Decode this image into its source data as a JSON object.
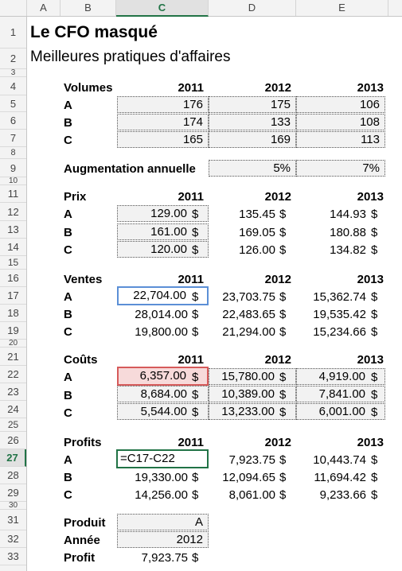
{
  "columns": [
    "A",
    "B",
    "C",
    "D",
    "E"
  ],
  "selected_column": "C",
  "rows": [
    "1",
    "2",
    "3",
    "4",
    "5",
    "6",
    "7",
    "8",
    "9",
    "10",
    "11",
    "12",
    "13",
    "14",
    "15",
    "16",
    "17",
    "18",
    "19",
    "20",
    "21",
    "22",
    "23",
    "24",
    "25",
    "26",
    "27",
    "28",
    "29",
    "30",
    "31",
    "32",
    "33"
  ],
  "selected_row": "27",
  "title": "Le CFO masqué",
  "subtitle": "Meilleures pratiques d'affaires",
  "years": [
    "2011",
    "2012",
    "2013"
  ],
  "currency": "$",
  "volumes": {
    "label": "Volumes",
    "rows": [
      {
        "name": "A",
        "values": [
          "176",
          "175",
          "106"
        ]
      },
      {
        "name": "B",
        "values": [
          "174",
          "133",
          "108"
        ]
      },
      {
        "name": "C",
        "values": [
          "165",
          "169",
          "113"
        ]
      }
    ]
  },
  "augmentation": {
    "label": "Augmentation annuelle",
    "values": [
      "",
      "5%",
      "7%"
    ]
  },
  "prix": {
    "label": "Prix",
    "rows": [
      {
        "name": "A",
        "values": [
          "129.00",
          "135.45",
          "144.93"
        ]
      },
      {
        "name": "B",
        "values": [
          "161.00",
          "169.05",
          "180.88"
        ]
      },
      {
        "name": "C",
        "values": [
          "120.00",
          "126.00",
          "134.82"
        ]
      }
    ]
  },
  "ventes": {
    "label": "Ventes",
    "rows": [
      {
        "name": "A",
        "values": [
          "22,704.00",
          "23,703.75",
          "15,362.74"
        ]
      },
      {
        "name": "B",
        "values": [
          "28,014.00",
          "22,483.65",
          "19,535.42"
        ]
      },
      {
        "name": "C",
        "values": [
          "19,800.00",
          "21,294.00",
          "15,234.66"
        ]
      }
    ]
  },
  "couts": {
    "label": "Coûts",
    "rows": [
      {
        "name": "A",
        "values": [
          "6,357.00",
          "15,780.00",
          "4,919.00"
        ]
      },
      {
        "name": "B",
        "values": [
          "8,684.00",
          "10,389.00",
          "7,841.00"
        ]
      },
      {
        "name": "C",
        "values": [
          "5,544.00",
          "13,233.00",
          "6,001.00"
        ]
      }
    ]
  },
  "profits": {
    "label": "Profits",
    "formula": "=C17-C22",
    "rows": [
      {
        "name": "A",
        "values": [
          "",
          "7,923.75",
          "10,443.74"
        ]
      },
      {
        "name": "B",
        "values": [
          "19,330.00",
          "12,094.65",
          "11,694.42"
        ]
      },
      {
        "name": "C",
        "values": [
          "14,256.00",
          "8,061.00",
          "9,233.66"
        ]
      }
    ]
  },
  "lookup": {
    "produit_label": "Produit",
    "produit_value": "A",
    "annee_label": "Année",
    "annee_value": "2012",
    "profit_label": "Profit",
    "profit_value": "7,923.75"
  }
}
